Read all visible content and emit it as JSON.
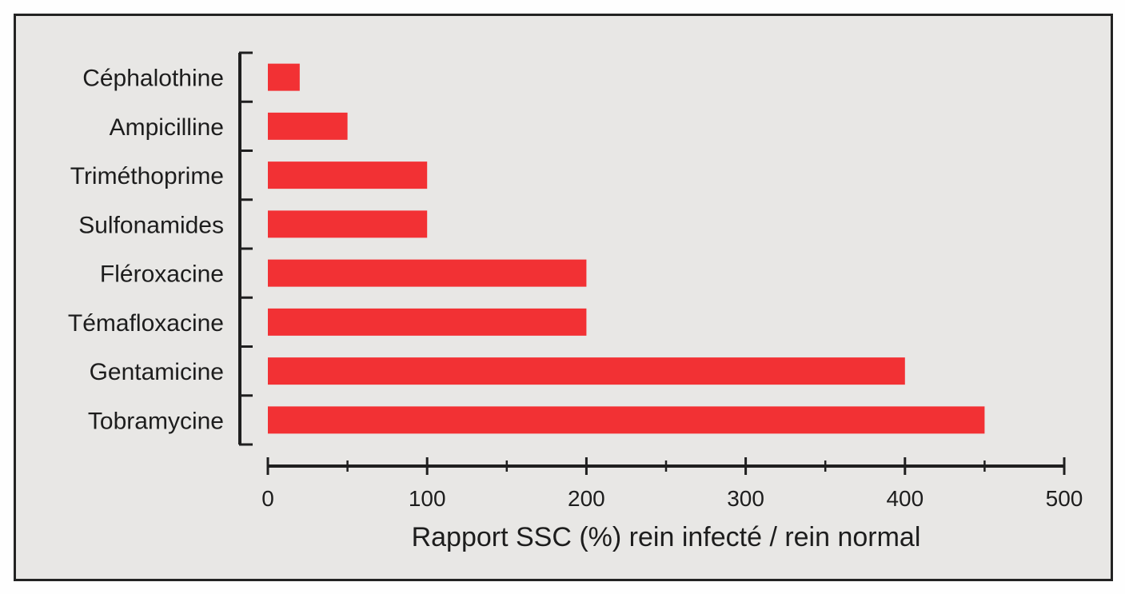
{
  "chart_data": {
    "type": "bar",
    "orientation": "horizontal",
    "categories": [
      "Céphalothine",
      "Ampicilline",
      "Triméthoprime",
      "Sulfonamides",
      "Fléroxacine",
      "Témafloxacine",
      "Gentamicine",
      "Tobramycine"
    ],
    "values": [
      20,
      50,
      100,
      100,
      200,
      200,
      400,
      450
    ],
    "title": "",
    "xlabel": "Rapport SSC (%) rein infecté / rein normal",
    "ylabel": "",
    "xlim": [
      0,
      500
    ],
    "x_tick_labels": [
      "0",
      "100",
      "200",
      "300",
      "400",
      "500"
    ],
    "x_tick_values": [
      0,
      100,
      200,
      300,
      400,
      500
    ],
    "x_minor_tick_values": [
      50,
      150,
      250,
      350,
      450
    ],
    "grid": false,
    "legend": "none",
    "bar_color": "#f23134",
    "axis_color": "#1f1f1f",
    "background_color": "#e8e7e5",
    "frame_color": "#232323"
  }
}
